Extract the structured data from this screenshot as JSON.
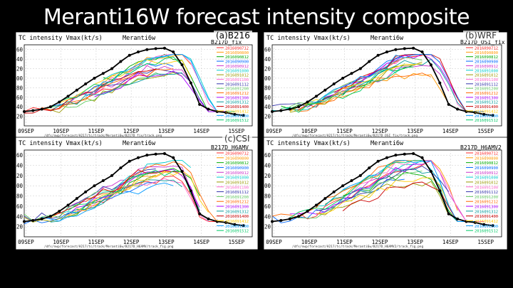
{
  "slide_title": "Meranti16W forecast intensity composite",
  "panel_badges": [
    "(a)B216",
    "(b)WRF",
    "(c)CSI"
  ],
  "chart_data": [
    {
      "type": "line",
      "panel_title": "TC intensity Vmax(kt/s)",
      "storm": "Meranti6w",
      "run": "B217D_fix",
      "categories": [
        "09SEP",
        "10SEP",
        "11SEP",
        "12SEP",
        "13SEP",
        "14SEP",
        "15SEP"
      ],
      "ylim": [
        0,
        170
      ],
      "yticks": [
        20,
        40,
        60,
        80,
        100,
        120,
        140,
        160
      ],
      "footer": "/dfs/nwp/forecast/H217/tc/track/Meranti6w/B217D_fix/track.png"
    },
    {
      "type": "line",
      "panel_title": "TC intensity Vmax(kt/s)",
      "storm": "Meranti6w",
      "run": "B217D_OSI_fix",
      "categories": [
        "09SEP",
        "10SEP",
        "11SEP",
        "12SEP",
        "13SEP",
        "14SEP",
        "15SEP"
      ],
      "ylim": [
        0,
        170
      ],
      "yticks": [
        20,
        40,
        60,
        80,
        100,
        120,
        140,
        160
      ],
      "footer": "/dfs/nwp/forecast/H217/tc/track/Meranti6w/B217D_OSI_fix/track.png"
    },
    {
      "type": "line",
      "panel_title": "TC intensity Vmax(kt/s)",
      "storm": "Meranti6w",
      "run": "B217D_H6AMV",
      "categories": [
        "09SEP",
        "10SEP",
        "11SEP",
        "12SEP",
        "13SEP",
        "14SEP",
        "15SEP"
      ],
      "ylim": [
        0,
        170
      ],
      "yticks": [
        20,
        40,
        60,
        80,
        100,
        120,
        140,
        160
      ],
      "footer": "/dfs/nwp/forecast/H217/tc/track/Meranti6w/B217D_H6AMV/track_fig.png"
    },
    {
      "type": "line",
      "panel_title": "TC intensity Vmax(kt/s)",
      "storm": "Meranti6w",
      "run": "B217D_H6AMV2",
      "categories": [
        "09SEP",
        "10SEP",
        "11SEP",
        "12SEP",
        "13SEP",
        "14SEP",
        "15SEP"
      ],
      "ylim": [
        0,
        170
      ],
      "yticks": [
        20,
        40,
        60,
        80,
        100,
        120,
        140,
        160
      ],
      "footer": "/dfs/nwp/forecast/H217/tc/track/Meranti6w/B217D_H6AMV2/track_fig.png"
    }
  ],
  "observed": {
    "name": "best track",
    "color": "#000000",
    "x": [
      0,
      0.25,
      0.5,
      0.75,
      1,
      1.25,
      1.5,
      1.75,
      2,
      2.25,
      2.5,
      2.75,
      3,
      3.25,
      3.5,
      3.75,
      4,
      4.25,
      4.5,
      4.75,
      5,
      5.25,
      5.5,
      5.75,
      6,
      6.25
    ],
    "y": [
      30,
      32,
      35,
      40,
      50,
      62,
      75,
      88,
      100,
      110,
      120,
      135,
      148,
      155,
      160,
      162,
      163,
      155,
      128,
      90,
      45,
      35,
      30,
      28,
      24,
      22
    ]
  },
  "series_colors": [
    "#ff2a2a",
    "#ff9900",
    "#00aa00",
    "#0066ff",
    "#cc33cc",
    "#00cccc",
    "#999900",
    "#ff66cc",
    "#3333aa",
    "#66cc66",
    "#ff6600",
    "#aa00ff",
    "#009999",
    "#cc0000",
    "#ffcc00",
    "#0099ff",
    "#00cc66",
    "#ff3399",
    "#7777ff",
    "#444444"
  ],
  "legend_entries": [
    "2016090712",
    "2016090800",
    "2016090812",
    "2016090900",
    "2016090912",
    "2016091000",
    "2016091012",
    "2016091100",
    "2016091112",
    "2016091200",
    "2016091212",
    "2016091300",
    "2016091312",
    "2016091400",
    "2016091412",
    "2016091500",
    "2016091512"
  ]
}
